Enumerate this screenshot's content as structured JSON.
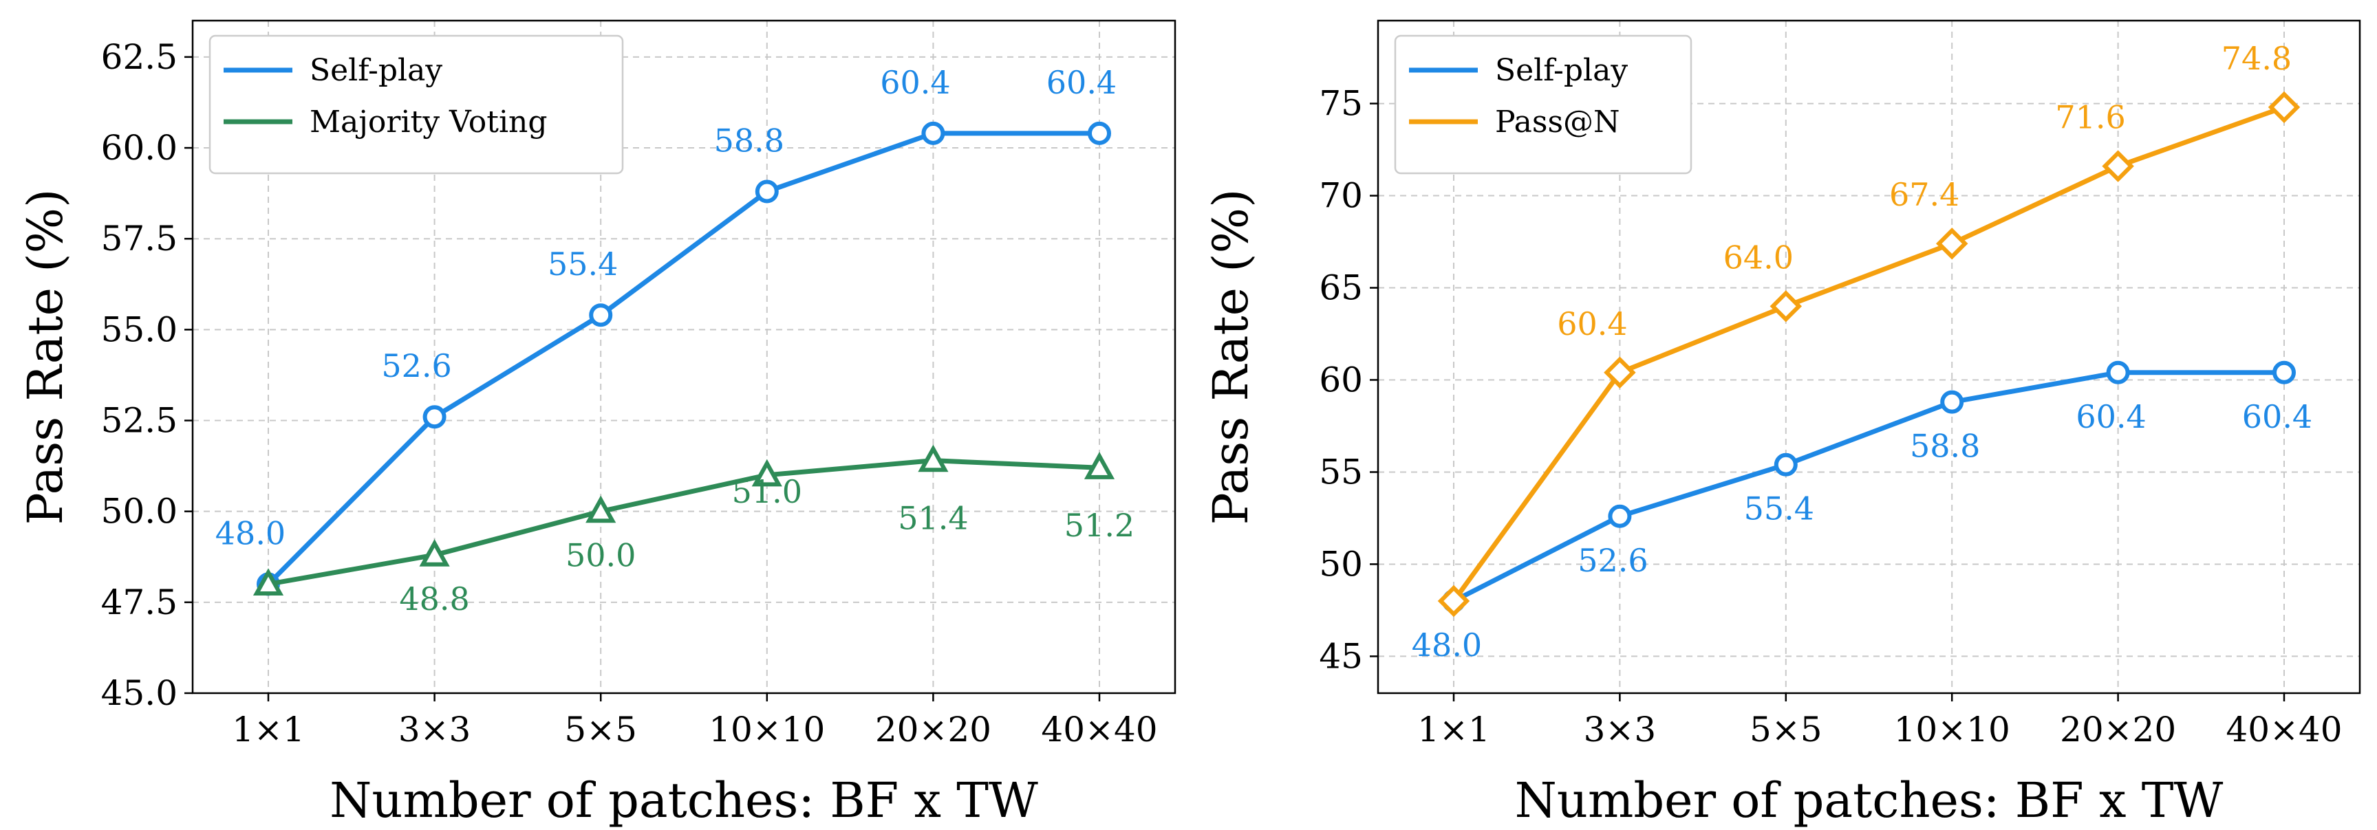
{
  "chart_data": [
    {
      "type": "line",
      "categories": [
        "1×1",
        "3×3",
        "5×5",
        "10×10",
        "20×20",
        "40×40"
      ],
      "series": [
        {
          "name": "Self-play",
          "color": "#1e88e5",
          "marker": "circle",
          "values": [
            48.0,
            52.6,
            55.4,
            58.8,
            60.4,
            60.4
          ],
          "labels": [
            "48.0",
            "52.6",
            "55.4",
            "58.8",
            "60.4",
            "60.4"
          ]
        },
        {
          "name": "Majority Voting",
          "color": "#2e8b57",
          "marker": "triangle",
          "values": [
            48.0,
            48.8,
            50.0,
            51.0,
            51.4,
            51.2
          ],
          "labels": [
            "",
            "48.8",
            "50.0",
            "51.0",
            "51.4",
            "51.2"
          ]
        }
      ],
      "xlabel": "Number of patches: BF x TW",
      "ylabel": "Pass Rate (%)",
      "ylim": [
        45.0,
        63.5
      ],
      "yticks": [
        "45.0",
        "47.5",
        "50.0",
        "52.5",
        "55.0",
        "57.5",
        "60.0",
        "62.5"
      ],
      "legend": "top-left",
      "grid": true
    },
    {
      "type": "line",
      "categories": [
        "1×1",
        "3×3",
        "5×5",
        "10×10",
        "20×20",
        "40×40"
      ],
      "series": [
        {
          "name": "Self-play",
          "color": "#1e88e5",
          "marker": "circle",
          "values": [
            48.0,
            52.6,
            55.4,
            58.8,
            60.4,
            60.4
          ],
          "labels": [
            "48.0",
            "52.6",
            "55.4",
            "58.8",
            "60.4",
            "60.4"
          ]
        },
        {
          "name": "Pass@N",
          "color": "#f5a00f",
          "marker": "diamond",
          "values": [
            48.0,
            60.4,
            64.0,
            67.4,
            71.6,
            74.8
          ],
          "labels": [
            "",
            "60.4",
            "64.0",
            "67.4",
            "71.6",
            "74.8"
          ]
        }
      ],
      "xlabel": "Number of patches: BF x TW",
      "ylabel": "Pass Rate (%)",
      "ylim": [
        43.0,
        79.5
      ],
      "yticks": [
        "45",
        "50",
        "55",
        "60",
        "65",
        "70",
        "75"
      ],
      "legend": "top-left",
      "grid": true
    }
  ]
}
